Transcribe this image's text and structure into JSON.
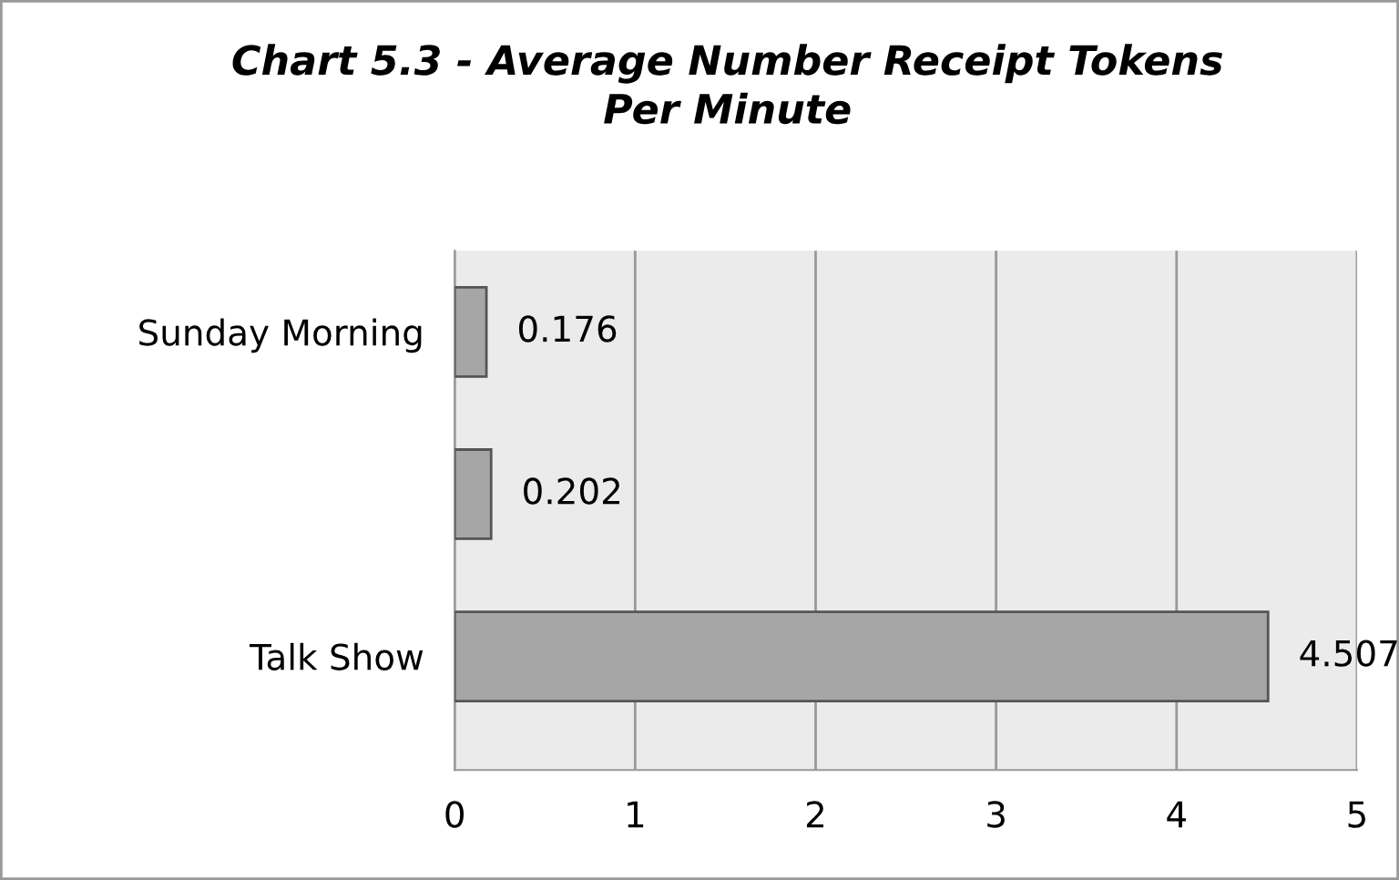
{
  "chart_data": {
    "type": "bar",
    "orientation": "horizontal",
    "title": "Chart 5.3 - Average Number Receipt Tokens\nPer Minute",
    "categories": [
      "Sunday Morning",
      null,
      "Talk Show"
    ],
    "values": [
      0.176,
      0.202,
      4.507
    ],
    "color": "#a6a6a6",
    "data_labels": true,
    "xlim": [
      0,
      5
    ],
    "xticks": [
      0,
      1,
      2,
      3,
      4,
      5
    ],
    "grid": "x"
  }
}
